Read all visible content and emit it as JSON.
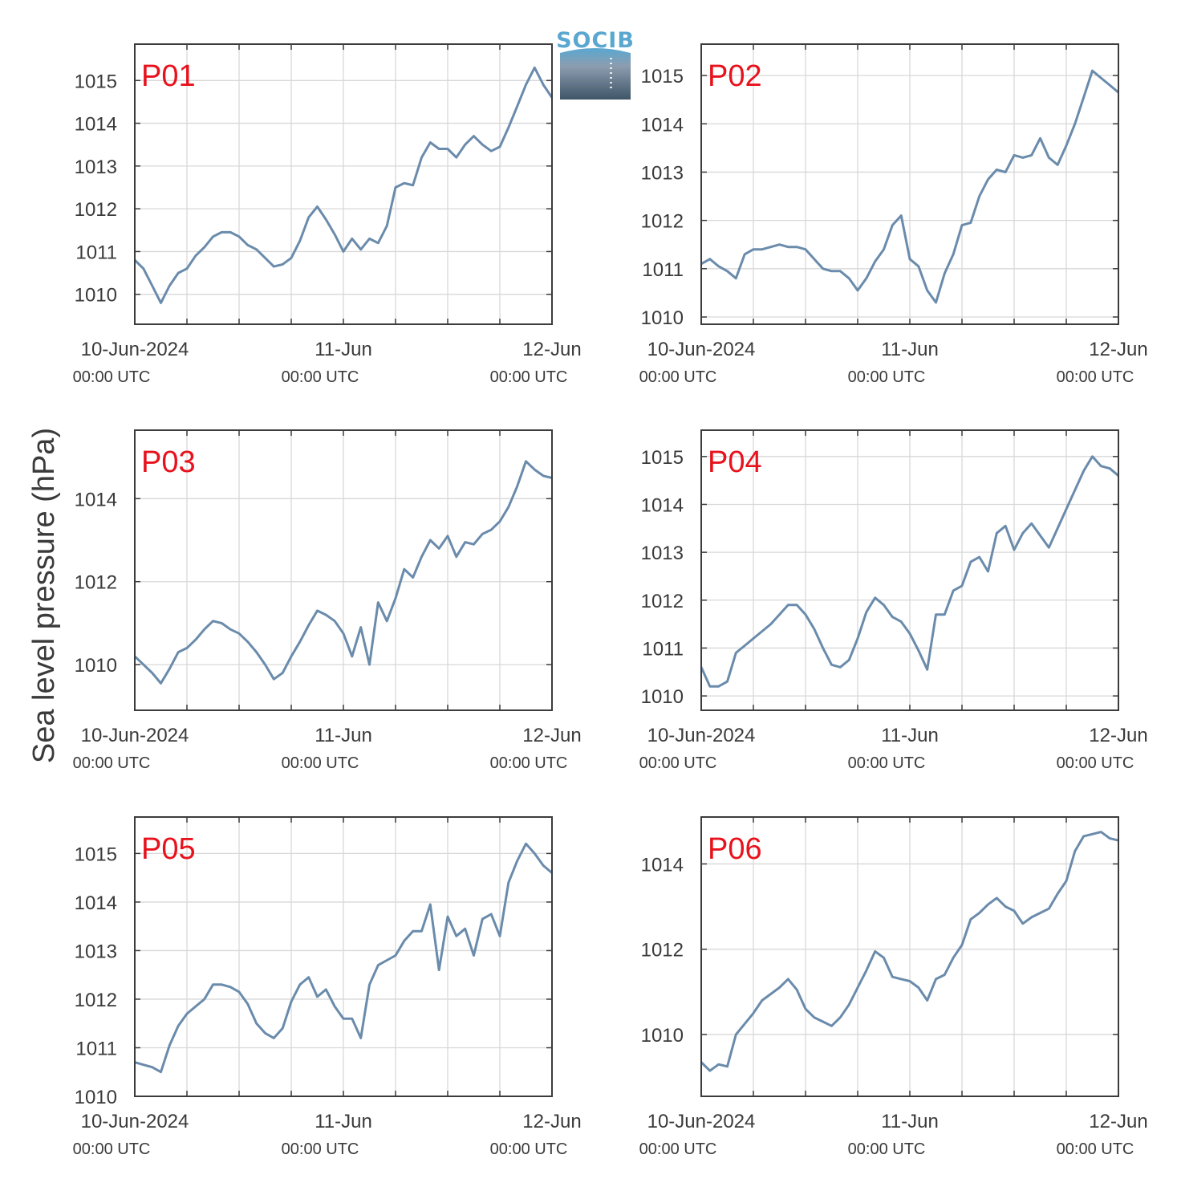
{
  "figure": {
    "ylabel": "Sea level pressure (hPa)",
    "logo_text": "SOCIB",
    "colors": {
      "line": "#6a8bab",
      "label": "#e8121c",
      "grid": "#d8d8d8",
      "axis": "#3c3c3c",
      "logo_blue": "#5aa7d0",
      "logo_dark": "#3f5568"
    },
    "xtick_labels": [
      {
        "date": "10-Jun-2024",
        "time": "00:00 UTC"
      },
      {
        "date": "11-Jun",
        "time": "00:00 UTC"
      },
      {
        "date": "12-Jun",
        "time": "00:00 UTC"
      }
    ]
  },
  "chart_data": [
    {
      "type": "line",
      "name": "P01",
      "grid": true,
      "xlim": [
        0,
        48
      ],
      "ylim": [
        1009.3,
        1015.85
      ],
      "yticks": [
        1010,
        1011,
        1012,
        1013,
        1014,
        1015
      ],
      "x_unit": "hours since 10-Jun-2024 00:00 UTC",
      "points": [
        [
          0,
          1010.8
        ],
        [
          1,
          1010.6
        ],
        [
          2,
          1010.2
        ],
        [
          3,
          1009.8
        ],
        [
          4,
          1010.2
        ],
        [
          5,
          1010.5
        ],
        [
          6,
          1010.6
        ],
        [
          7,
          1010.9
        ],
        [
          8,
          1011.1
        ],
        [
          9,
          1011.35
        ],
        [
          10,
          1011.45
        ],
        [
          11,
          1011.45
        ],
        [
          12,
          1011.35
        ],
        [
          13,
          1011.15
        ],
        [
          14,
          1011.05
        ],
        [
          15,
          1010.85
        ],
        [
          16,
          1010.65
        ],
        [
          17,
          1010.7
        ],
        [
          18,
          1010.85
        ],
        [
          19,
          1011.25
        ],
        [
          20,
          1011.8
        ],
        [
          21,
          1012.05
        ],
        [
          22,
          1011.75
        ],
        [
          23,
          1011.4
        ],
        [
          24,
          1011.0
        ],
        [
          25,
          1011.3
        ],
        [
          26,
          1011.05
        ],
        [
          27,
          1011.3
        ],
        [
          28,
          1011.2
        ],
        [
          29,
          1011.6
        ],
        [
          30,
          1012.5
        ],
        [
          31,
          1012.6
        ],
        [
          32,
          1012.55
        ],
        [
          33,
          1013.2
        ],
        [
          34,
          1013.55
        ],
        [
          35,
          1013.4
        ],
        [
          36,
          1013.4
        ],
        [
          37,
          1013.2
        ],
        [
          38,
          1013.5
        ],
        [
          39,
          1013.7
        ],
        [
          40,
          1013.5
        ],
        [
          41,
          1013.35
        ],
        [
          42,
          1013.45
        ],
        [
          43,
          1013.9
        ],
        [
          44,
          1014.4
        ],
        [
          45,
          1014.9
        ],
        [
          46,
          1015.3
        ],
        [
          47,
          1014.9
        ],
        [
          48,
          1014.6
        ]
      ]
    },
    {
      "type": "line",
      "name": "P02",
      "grid": true,
      "xlim": [
        0,
        48
      ],
      "ylim": [
        1009.85,
        1015.65
      ],
      "yticks": [
        1010,
        1011,
        1012,
        1013,
        1014,
        1015
      ],
      "x_unit": "hours since 10-Jun-2024 00:00 UTC",
      "points": [
        [
          0,
          1011.1
        ],
        [
          1,
          1011.2
        ],
        [
          2,
          1011.05
        ],
        [
          3,
          1010.95
        ],
        [
          4,
          1010.8
        ],
        [
          5,
          1011.3
        ],
        [
          6,
          1011.4
        ],
        [
          7,
          1011.4
        ],
        [
          8,
          1011.45
        ],
        [
          9,
          1011.5
        ],
        [
          10,
          1011.45
        ],
        [
          11,
          1011.45
        ],
        [
          12,
          1011.4
        ],
        [
          13,
          1011.2
        ],
        [
          14,
          1011.0
        ],
        [
          15,
          1010.95
        ],
        [
          16,
          1010.95
        ],
        [
          17,
          1010.8
        ],
        [
          18,
          1010.55
        ],
        [
          19,
          1010.8
        ],
        [
          20,
          1011.15
        ],
        [
          21,
          1011.4
        ],
        [
          22,
          1011.9
        ],
        [
          23,
          1012.1
        ],
        [
          24,
          1011.2
        ],
        [
          25,
          1011.05
        ],
        [
          26,
          1010.55
        ],
        [
          27,
          1010.3
        ],
        [
          28,
          1010.9
        ],
        [
          29,
          1011.3
        ],
        [
          30,
          1011.9
        ],
        [
          31,
          1011.95
        ],
        [
          32,
          1012.5
        ],
        [
          33,
          1012.85
        ],
        [
          34,
          1013.05
        ],
        [
          35,
          1013.0
        ],
        [
          36,
          1013.35
        ],
        [
          37,
          1013.3
        ],
        [
          38,
          1013.35
        ],
        [
          39,
          1013.7
        ],
        [
          40,
          1013.3
        ],
        [
          41,
          1013.15
        ],
        [
          42,
          1013.55
        ],
        [
          43,
          1014.0
        ],
        [
          44,
          1014.55
        ],
        [
          45,
          1015.1
        ],
        [
          46,
          1014.95
        ],
        [
          47,
          1014.8
        ],
        [
          48,
          1014.65
        ]
      ]
    },
    {
      "type": "line",
      "name": "P03",
      "grid": true,
      "xlim": [
        0,
        48
      ],
      "ylim": [
        1008.9,
        1015.65
      ],
      "yticks": [
        1010,
        1012,
        1014
      ],
      "x_unit": "hours since 10-Jun-2024 00:00 UTC",
      "points": [
        [
          0,
          1010.2
        ],
        [
          1,
          1010.0
        ],
        [
          2,
          1009.8
        ],
        [
          3,
          1009.55
        ],
        [
          4,
          1009.9
        ],
        [
          5,
          1010.3
        ],
        [
          6,
          1010.4
        ],
        [
          7,
          1010.6
        ],
        [
          8,
          1010.85
        ],
        [
          9,
          1011.05
        ],
        [
          10,
          1011.0
        ],
        [
          11,
          1010.85
        ],
        [
          12,
          1010.75
        ],
        [
          13,
          1010.55
        ],
        [
          14,
          1010.3
        ],
        [
          15,
          1010.0
        ],
        [
          16,
          1009.65
        ],
        [
          17,
          1009.8
        ],
        [
          18,
          1010.2
        ],
        [
          19,
          1010.55
        ],
        [
          20,
          1010.95
        ],
        [
          21,
          1011.3
        ],
        [
          22,
          1011.2
        ],
        [
          23,
          1011.05
        ],
        [
          24,
          1010.75
        ],
        [
          25,
          1010.2
        ],
        [
          26,
          1010.9
        ],
        [
          27,
          1010.0
        ],
        [
          28,
          1011.5
        ],
        [
          29,
          1011.05
        ],
        [
          30,
          1011.6
        ],
        [
          31,
          1012.3
        ],
        [
          32,
          1012.1
        ],
        [
          33,
          1012.6
        ],
        [
          34,
          1013.0
        ],
        [
          35,
          1012.8
        ],
        [
          36,
          1013.1
        ],
        [
          37,
          1012.6
        ],
        [
          38,
          1012.95
        ],
        [
          39,
          1012.9
        ],
        [
          40,
          1013.15
        ],
        [
          41,
          1013.25
        ],
        [
          42,
          1013.45
        ],
        [
          43,
          1013.8
        ],
        [
          44,
          1014.3
        ],
        [
          45,
          1014.9
        ],
        [
          46,
          1014.7
        ],
        [
          47,
          1014.55
        ],
        [
          48,
          1014.5
        ]
      ]
    },
    {
      "type": "line",
      "name": "P04",
      "grid": true,
      "xlim": [
        0,
        48
      ],
      "ylim": [
        1009.7,
        1015.55
      ],
      "yticks": [
        1010,
        1011,
        1012,
        1013,
        1014,
        1015
      ],
      "x_unit": "hours since 10-Jun-2024 00:00 UTC",
      "points": [
        [
          0,
          1010.6
        ],
        [
          1,
          1010.2
        ],
        [
          2,
          1010.2
        ],
        [
          3,
          1010.3
        ],
        [
          4,
          1010.9
        ],
        [
          5,
          1011.05
        ],
        [
          6,
          1011.2
        ],
        [
          7,
          1011.35
        ],
        [
          8,
          1011.5
        ],
        [
          9,
          1011.7
        ],
        [
          10,
          1011.9
        ],
        [
          11,
          1011.9
        ],
        [
          12,
          1011.7
        ],
        [
          13,
          1011.4
        ],
        [
          14,
          1011.0
        ],
        [
          15,
          1010.65
        ],
        [
          16,
          1010.6
        ],
        [
          17,
          1010.75
        ],
        [
          18,
          1011.2
        ],
        [
          19,
          1011.75
        ],
        [
          20,
          1012.05
        ],
        [
          21,
          1011.9
        ],
        [
          22,
          1011.65
        ],
        [
          23,
          1011.55
        ],
        [
          24,
          1011.3
        ],
        [
          25,
          1010.95
        ],
        [
          26,
          1010.55
        ],
        [
          27,
          1011.7
        ],
        [
          28,
          1011.7
        ],
        [
          29,
          1012.2
        ],
        [
          30,
          1012.3
        ],
        [
          31,
          1012.8
        ],
        [
          32,
          1012.9
        ],
        [
          33,
          1012.6
        ],
        [
          34,
          1013.4
        ],
        [
          35,
          1013.55
        ],
        [
          36,
          1013.05
        ],
        [
          37,
          1013.4
        ],
        [
          38,
          1013.6
        ],
        [
          39,
          1013.35
        ],
        [
          40,
          1013.1
        ],
        [
          41,
          1013.5
        ],
        [
          42,
          1013.9
        ],
        [
          43,
          1014.3
        ],
        [
          44,
          1014.7
        ],
        [
          45,
          1015.0
        ],
        [
          46,
          1014.8
        ],
        [
          47,
          1014.75
        ],
        [
          48,
          1014.6
        ]
      ]
    },
    {
      "type": "line",
      "name": "P05",
      "grid": true,
      "xlim": [
        0,
        48
      ],
      "ylim": [
        1010.0,
        1015.75
      ],
      "yticks": [
        1010,
        1011,
        1012,
        1013,
        1014,
        1015
      ],
      "x_unit": "hours since 10-Jun-2024 00:00 UTC",
      "points": [
        [
          0,
          1010.7
        ],
        [
          1,
          1010.65
        ],
        [
          2,
          1010.6
        ],
        [
          3,
          1010.5
        ],
        [
          4,
          1011.05
        ],
        [
          5,
          1011.45
        ],
        [
          6,
          1011.7
        ],
        [
          7,
          1011.85
        ],
        [
          8,
          1012.0
        ],
        [
          9,
          1012.3
        ],
        [
          10,
          1012.3
        ],
        [
          11,
          1012.25
        ],
        [
          12,
          1012.15
        ],
        [
          13,
          1011.9
        ],
        [
          14,
          1011.5
        ],
        [
          15,
          1011.3
        ],
        [
          16,
          1011.2
        ],
        [
          17,
          1011.4
        ],
        [
          18,
          1011.95
        ],
        [
          19,
          1012.3
        ],
        [
          20,
          1012.45
        ],
        [
          21,
          1012.05
        ],
        [
          22,
          1012.2
        ],
        [
          23,
          1011.85
        ],
        [
          24,
          1011.6
        ],
        [
          25,
          1011.6
        ],
        [
          26,
          1011.2
        ],
        [
          27,
          1012.3
        ],
        [
          28,
          1012.7
        ],
        [
          29,
          1012.8
        ],
        [
          30,
          1012.9
        ],
        [
          31,
          1013.2
        ],
        [
          32,
          1013.4
        ],
        [
          33,
          1013.4
        ],
        [
          34,
          1013.95
        ],
        [
          35,
          1012.6
        ],
        [
          36,
          1013.7
        ],
        [
          37,
          1013.3
        ],
        [
          38,
          1013.45
        ],
        [
          39,
          1012.9
        ],
        [
          40,
          1013.65
        ],
        [
          41,
          1013.75
        ],
        [
          42,
          1013.3
        ],
        [
          43,
          1014.4
        ],
        [
          44,
          1014.85
        ],
        [
          45,
          1015.2
        ],
        [
          46,
          1015.0
        ],
        [
          47,
          1014.75
        ],
        [
          48,
          1014.6
        ]
      ]
    },
    {
      "type": "line",
      "name": "P06",
      "grid": true,
      "xlim": [
        0,
        48
      ],
      "ylim": [
        1008.55,
        1015.1
      ],
      "yticks": [
        1010,
        1012,
        1014
      ],
      "x_unit": "hours since 10-Jun-2024 00:00 UTC",
      "points": [
        [
          0,
          1009.35
        ],
        [
          1,
          1009.15
        ],
        [
          2,
          1009.3
        ],
        [
          3,
          1009.25
        ],
        [
          4,
          1010.0
        ],
        [
          5,
          1010.25
        ],
        [
          6,
          1010.5
        ],
        [
          7,
          1010.8
        ],
        [
          8,
          1010.95
        ],
        [
          9,
          1011.1
        ],
        [
          10,
          1011.3
        ],
        [
          11,
          1011.05
        ],
        [
          12,
          1010.6
        ],
        [
          13,
          1010.4
        ],
        [
          14,
          1010.3
        ],
        [
          15,
          1010.2
        ],
        [
          16,
          1010.4
        ],
        [
          17,
          1010.7
        ],
        [
          18,
          1011.1
        ],
        [
          19,
          1011.5
        ],
        [
          20,
          1011.95
        ],
        [
          21,
          1011.8
        ],
        [
          22,
          1011.35
        ],
        [
          23,
          1011.3
        ],
        [
          24,
          1011.25
        ],
        [
          25,
          1011.1
        ],
        [
          26,
          1010.8
        ],
        [
          27,
          1011.3
        ],
        [
          28,
          1011.4
        ],
        [
          29,
          1011.8
        ],
        [
          30,
          1012.1
        ],
        [
          31,
          1012.7
        ],
        [
          32,
          1012.85
        ],
        [
          33,
          1013.05
        ],
        [
          34,
          1013.2
        ],
        [
          35,
          1013.0
        ],
        [
          36,
          1012.9
        ],
        [
          37,
          1012.6
        ],
        [
          38,
          1012.75
        ],
        [
          39,
          1012.85
        ],
        [
          40,
          1012.95
        ],
        [
          41,
          1013.3
        ],
        [
          42,
          1013.6
        ],
        [
          43,
          1014.3
        ],
        [
          44,
          1014.65
        ],
        [
          45,
          1014.7
        ],
        [
          46,
          1014.75
        ],
        [
          47,
          1014.6
        ],
        [
          48,
          1014.55
        ]
      ]
    }
  ]
}
